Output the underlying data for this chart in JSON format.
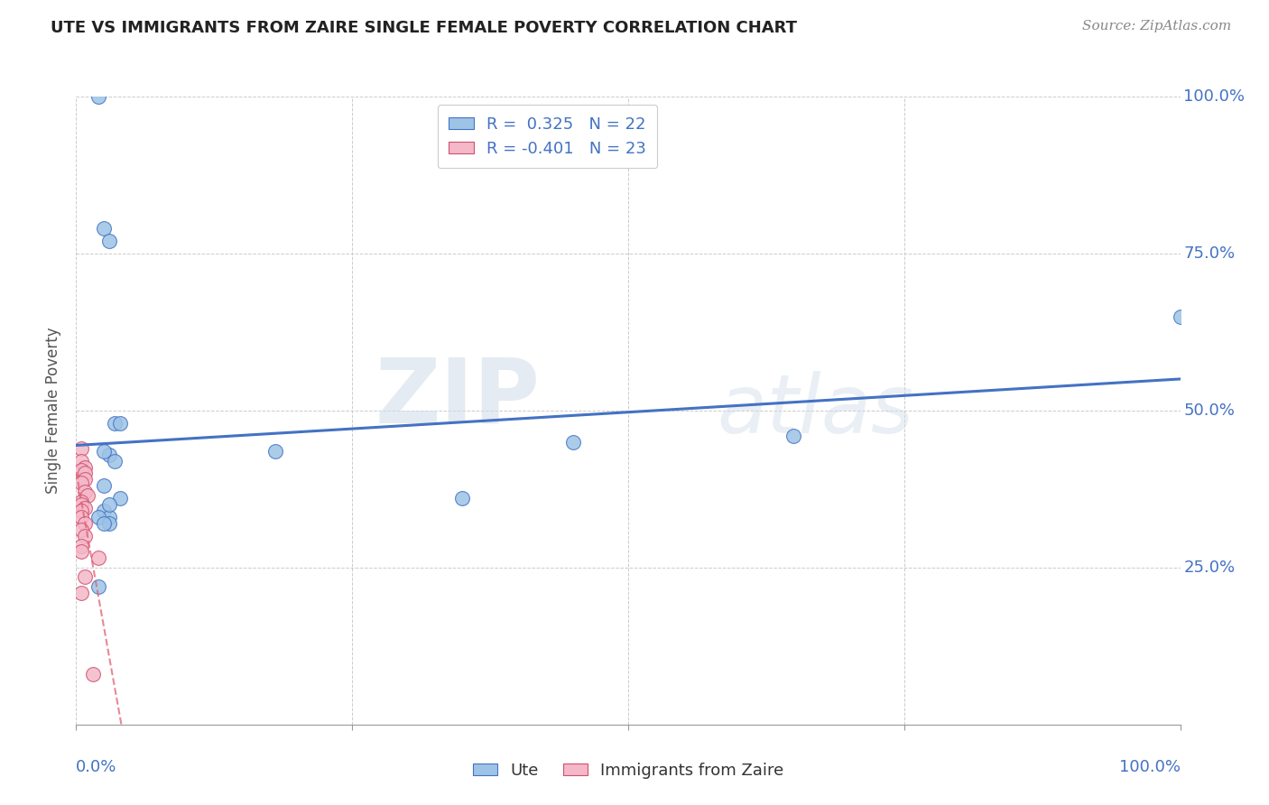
{
  "title": "UTE VS IMMIGRANTS FROM ZAIRE SINGLE FEMALE POVERTY CORRELATION CHART",
  "source": "Source: ZipAtlas.com",
  "ylabel": "Single Female Poverty",
  "blue_label": "Ute",
  "pink_label": "Immigrants from Zaire",
  "blue_R": "0.325",
  "blue_N": "22",
  "pink_R": "-0.401",
  "pink_N": "23",
  "blue_x": [
    0.02,
    0.025,
    0.03,
    0.035,
    0.04,
    0.03,
    0.18,
    0.025,
    0.035,
    0.025,
    0.45,
    0.65,
    1.0,
    0.04,
    0.025,
    0.03,
    0.02,
    0.03,
    0.02,
    0.35,
    0.025,
    0.03
  ],
  "blue_y": [
    1.0,
    0.79,
    0.77,
    0.48,
    0.48,
    0.43,
    0.435,
    0.435,
    0.42,
    0.38,
    0.45,
    0.46,
    0.65,
    0.36,
    0.34,
    0.33,
    0.33,
    0.32,
    0.22,
    0.36,
    0.32,
    0.35
  ],
  "pink_x": [
    0.005,
    0.005,
    0.008,
    0.005,
    0.008,
    0.008,
    0.005,
    0.008,
    0.01,
    0.005,
    0.005,
    0.008,
    0.005,
    0.005,
    0.008,
    0.005,
    0.008,
    0.005,
    0.005,
    0.02,
    0.008,
    0.005,
    0.015
  ],
  "pink_y": [
    0.44,
    0.42,
    0.41,
    0.405,
    0.4,
    0.39,
    0.385,
    0.37,
    0.365,
    0.355,
    0.35,
    0.345,
    0.34,
    0.33,
    0.32,
    0.31,
    0.3,
    0.285,
    0.275,
    0.265,
    0.235,
    0.21,
    0.08
  ],
  "blue_line_color": "#4472c4",
  "blue_marker_color": "#9dc3e6",
  "blue_marker_edge": "#4472c4",
  "pink_line_color": "#e06070",
  "pink_marker_color": "#f4b8c8",
  "pink_marker_edge": "#d05070",
  "watermark_part1": "ZIP",
  "watermark_part2": "atlas",
  "xlim": [
    0,
    1.0
  ],
  "ylim": [
    0,
    1.0
  ],
  "background_color": "#ffffff",
  "grid_color": "#cccccc"
}
